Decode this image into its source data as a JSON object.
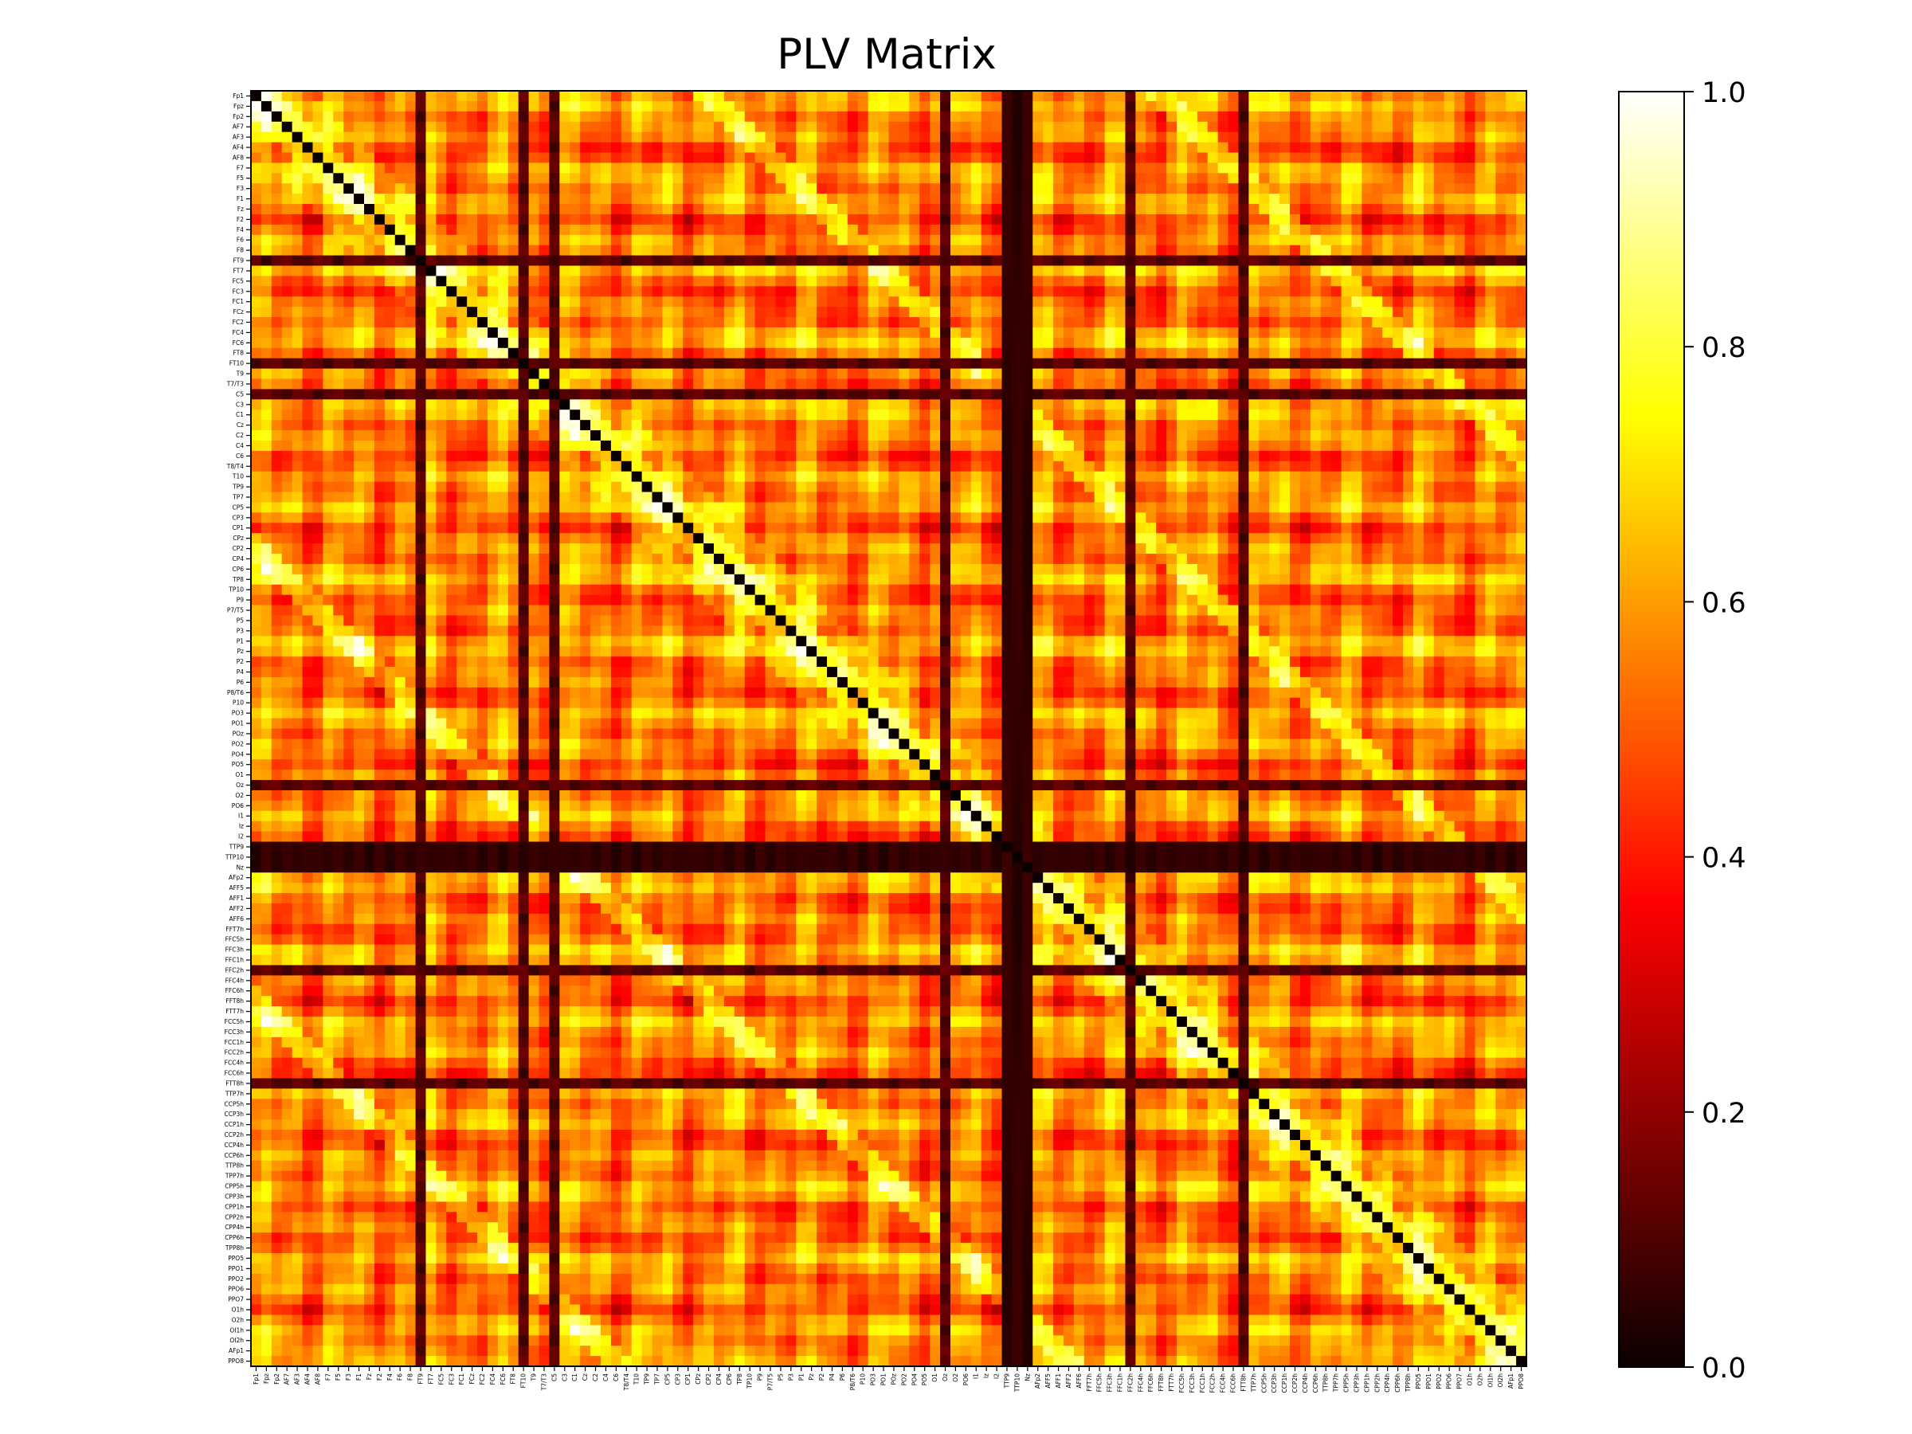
{
  "chart_data": {
    "type": "heatmap",
    "title": "PLV Matrix",
    "labels": [
      "Fp1",
      "Fpz",
      "Fp2",
      "AF7",
      "AF3",
      "AF4",
      "AF8",
      "F7",
      "F5",
      "F3",
      "F1",
      "Fz",
      "F2",
      "F4",
      "F6",
      "F8",
      "FT9",
      "FT7",
      "FC5",
      "FC3",
      "FC1",
      "FCz",
      "FC2",
      "FC4",
      "FC6",
      "FT8",
      "FT10",
      "T9",
      "T7/T3",
      "C5",
      "C3",
      "C1",
      "Cz",
      "C2",
      "C4",
      "C6",
      "T8/T4",
      "T10",
      "TP9",
      "TP7",
      "CP5",
      "CP3",
      "CP1",
      "CPz",
      "CP2",
      "CP4",
      "CP6",
      "TP8",
      "TP10",
      "P9",
      "P7/T5",
      "P5",
      "P3",
      "P1",
      "Pz",
      "P2",
      "P4",
      "P6",
      "P8/T6",
      "P10",
      "PO3",
      "PO1",
      "POz",
      "PO2",
      "PO4",
      "PO5",
      "O1",
      "Oz",
      "O2",
      "PO6",
      "I1",
      "Iz",
      "I2",
      "TTP9",
      "TTP10",
      "Nz",
      "AFp2",
      "AFF5",
      "AFF1",
      "AFF2",
      "AFF6",
      "FFT7h",
      "FFC5h",
      "FFC3h",
      "FFC1h",
      "FFC2h",
      "FFC4h",
      "FFC6h",
      "FFT8h",
      "FTT7h",
      "FCC5h",
      "FCC3h",
      "FCC1h",
      "FCC2h",
      "FCC4h",
      "FCC6h",
      "FTT8h",
      "TTP7h",
      "CCP5h",
      "CCP3h",
      "CCP1h",
      "CCP2h",
      "CCP4h",
      "CCP6h",
      "TTP8h",
      "TPP7h",
      "CPP5h",
      "CPP3h",
      "CPP1h",
      "CPP2h",
      "CPP4h",
      "CPP6h",
      "TPP8h",
      "PPO5",
      "PPO1",
      "PPO2",
      "PPO6",
      "PPO7",
      "O1h",
      "O2h",
      "OI1h",
      "OI2h",
      "AFp1",
      "PPO8"
    ],
    "value_range": [
      0.0,
      1.0
    ],
    "colormap": "hot",
    "diagonal_value": 0.0,
    "low_channels": [
      "FT9",
      "FT10",
      "C5",
      "Oz",
      "TTP9",
      "TTP10",
      "Nz",
      "FFC2h",
      "FTT8h"
    ],
    "very_low_channels": [
      "TTP9",
      "TTP10",
      "Nz"
    ],
    "colorbar": {
      "ticks": [
        0.0,
        0.2,
        0.4,
        0.6,
        0.8,
        1.0
      ],
      "tick_labels": [
        "0.0",
        "0.2",
        "0.4",
        "0.6",
        "0.8",
        "1.0"
      ]
    }
  }
}
